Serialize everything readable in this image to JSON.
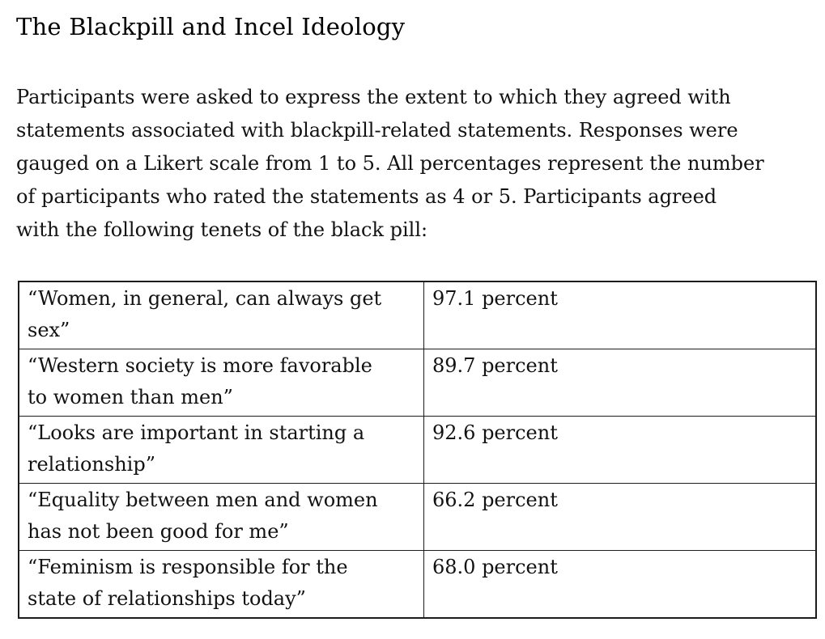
{
  "page": {
    "title": "The Blackpill and Incel Ideology"
  },
  "intro": {
    "lines": [
      "Participants were asked to express the extent to which they agreed with",
      "statements associated with blackpill-related statements. Responses were",
      "gauged on a Likert scale from 1 to 5. All percentages represent the number",
      "of participants who rated the statements as 4 or 5. Participants agreed",
      "with the following tenets of the black pill:"
    ]
  },
  "table": {
    "rows": [
      {
        "statement": "“Women, in general, can always get sex”",
        "lines": [
          "“Women, in general, can always get",
          "sex”"
        ],
        "value": "97.1 percent",
        "percent": 97.1
      },
      {
        "statement": "“Western society is more favorable to women than men”",
        "lines": [
          "“Western society is more favorable",
          "to women than men”"
        ],
        "value": "89.7 percent",
        "percent": 89.7
      },
      {
        "statement": "“Looks are important in starting a relationship”",
        "lines": [
          "“Looks are important in starting a",
          "relationship”"
        ],
        "value": "92.6 percent",
        "percent": 92.6
      },
      {
        "statement": "“Equality between men and women has not been good for me”",
        "lines": [
          "“Equality between men and women",
          "has not been good for me”"
        ],
        "value": "66.2 percent",
        "percent": 66.2
      },
      {
        "statement": "“Feminism is responsible for the state of relationships today”",
        "lines": [
          "“Feminism is responsible for the",
          "state of relationships today”"
        ],
        "value": "68.0 percent",
        "percent": 68.0
      }
    ]
  },
  "colors": {
    "background": "#ffffff",
    "text": "#121212",
    "title_text": "#000000",
    "table_border": "#1c1c1c"
  }
}
